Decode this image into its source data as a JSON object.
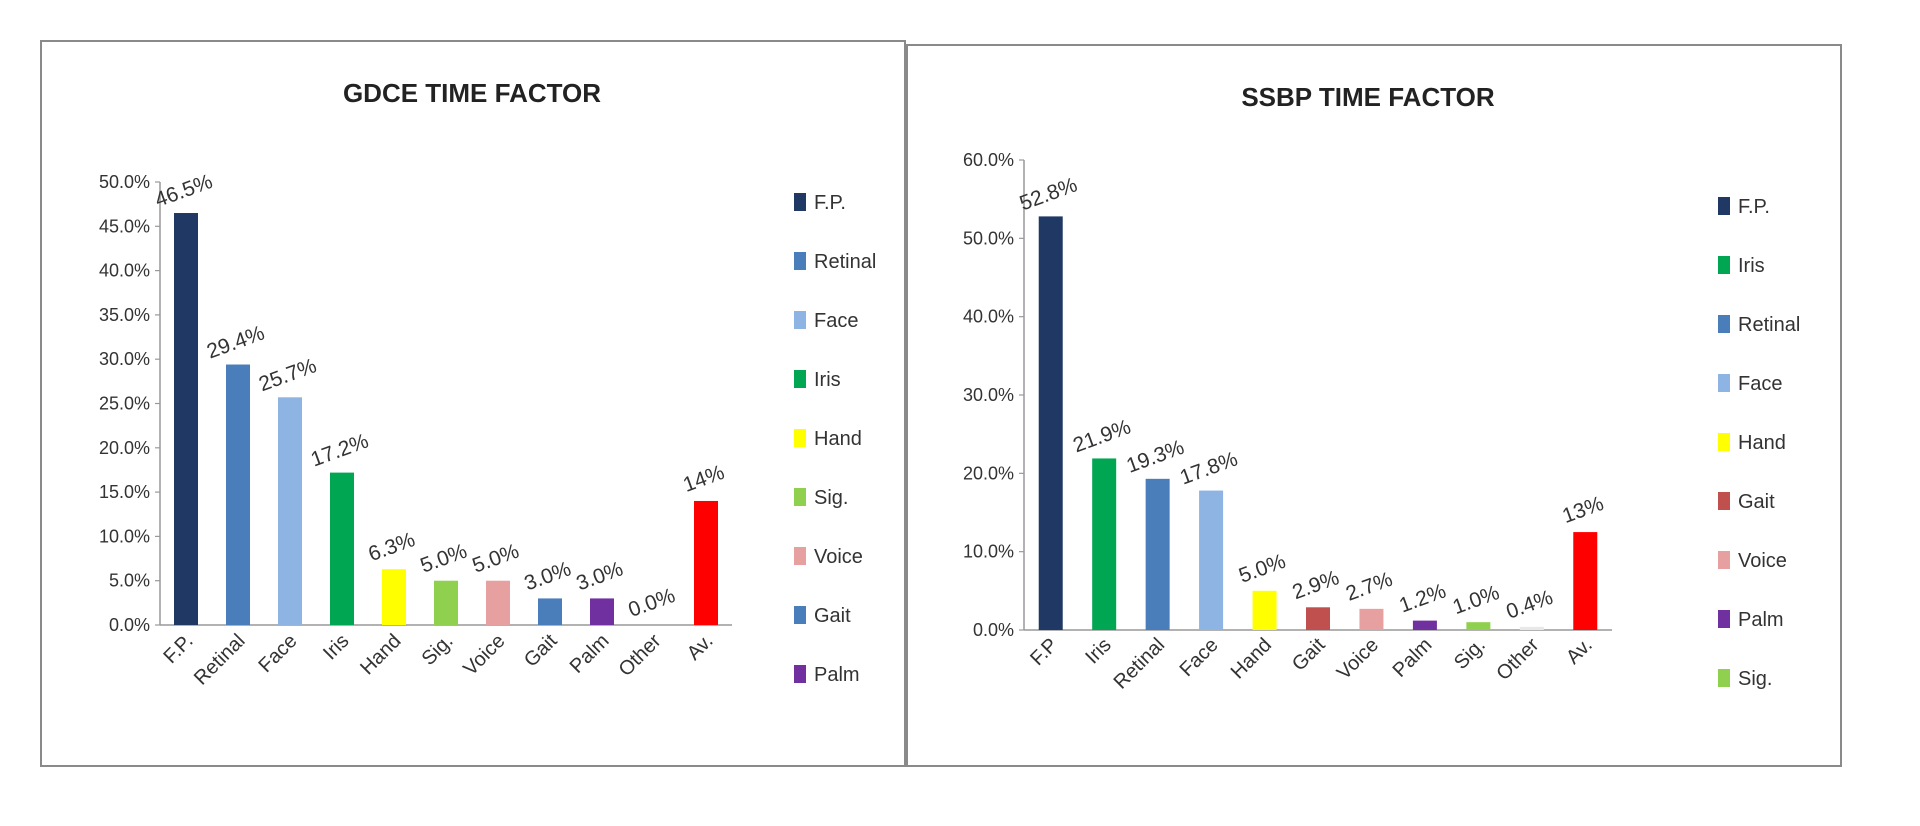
{
  "chart_data": [
    {
      "type": "bar",
      "title": "GDCE TIME FACTOR",
      "ylim": [
        0,
        50
      ],
      "yticks": [
        "0.0%",
        "5.0%",
        "10.0%",
        "15.0%",
        "20.0%",
        "25.0%",
        "30.0%",
        "35.0%",
        "40.0%",
        "45.0%",
        "50.0%"
      ],
      "grid": false,
      "legend_position": "right",
      "categories": [
        "F.P.",
        "Retinal",
        "Face",
        "Iris",
        "Hand",
        "Sig.",
        "Voice",
        "Gait",
        "Palm",
        "Other",
        "Av."
      ],
      "values": [
        46.5,
        29.4,
        25.7,
        17.2,
        6.3,
        5.0,
        5.0,
        3.0,
        3.0,
        0.0,
        14
      ],
      "labels": [
        "46.5%",
        "29.4%",
        "25.7%",
        "17.2%",
        "6.3%",
        "5.0%",
        "5.0%",
        "3.0%",
        "3.0%",
        "0.0%",
        "14%"
      ],
      "colors": [
        "#1f3864",
        "#4a7ebb",
        "#8db4e2",
        "#00a651",
        "#ffff00",
        "#8fd14f",
        "#e6a0a0",
        "#4a7ebb",
        "#7030a0",
        "#ffffff",
        "#ff0000"
      ],
      "legend": [
        {
          "label": "F.P.",
          "color": "#1f3864"
        },
        {
          "label": "Retinal",
          "color": "#4a7ebb"
        },
        {
          "label": "Face",
          "color": "#8db4e2"
        },
        {
          "label": "Iris",
          "color": "#00a651"
        },
        {
          "label": "Hand",
          "color": "#ffff00"
        },
        {
          "label": "Sig.",
          "color": "#8fd14f"
        },
        {
          "label": "Voice",
          "color": "#e6a0a0"
        },
        {
          "label": "Gait",
          "color": "#4a7ebb"
        },
        {
          "label": "Palm",
          "color": "#7030a0"
        }
      ]
    },
    {
      "type": "bar",
      "title": "SSBP TIME FACTOR",
      "ylim": [
        0,
        60
      ],
      "yticks": [
        "0.0%",
        "10.0%",
        "20.0%",
        "30.0%",
        "40.0%",
        "50.0%",
        "60.0%"
      ],
      "grid": false,
      "legend_position": "right",
      "categories": [
        "F.P",
        "Iris",
        "Retinal",
        "Face",
        "Hand",
        "Gait",
        "Voice",
        "Palm",
        "Sig.",
        "Other",
        "Av."
      ],
      "values": [
        52.8,
        21.9,
        19.3,
        17.8,
        5.0,
        2.9,
        2.7,
        1.2,
        1.0,
        0.4,
        12.5
      ],
      "labels": [
        "52.8%",
        "21.9%",
        "19.3%",
        "17.8%",
        "5.0%",
        "2.9%",
        "2.7%",
        "1.2%",
        "1.0%",
        "0.4%",
        "13%"
      ],
      "colors": [
        "#1f3864",
        "#00a651",
        "#4a7ebb",
        "#8db4e2",
        "#ffff00",
        "#c0504d",
        "#e6a0a0",
        "#7030a0",
        "#8fd14f",
        "#e8e8e8",
        "#ff0000"
      ],
      "legend": [
        {
          "label": "F.P.",
          "color": "#1f3864"
        },
        {
          "label": "Iris",
          "color": "#00a651"
        },
        {
          "label": "Retinal",
          "color": "#4a7ebb"
        },
        {
          "label": "Face",
          "color": "#8db4e2"
        },
        {
          "label": "Hand",
          "color": "#ffff00"
        },
        {
          "label": "Gait",
          "color": "#c0504d"
        },
        {
          "label": "Voice",
          "color": "#e6a0a0"
        },
        {
          "label": "Palm",
          "color": "#7030a0"
        },
        {
          "label": "Sig.",
          "color": "#8fd14f"
        }
      ]
    }
  ]
}
